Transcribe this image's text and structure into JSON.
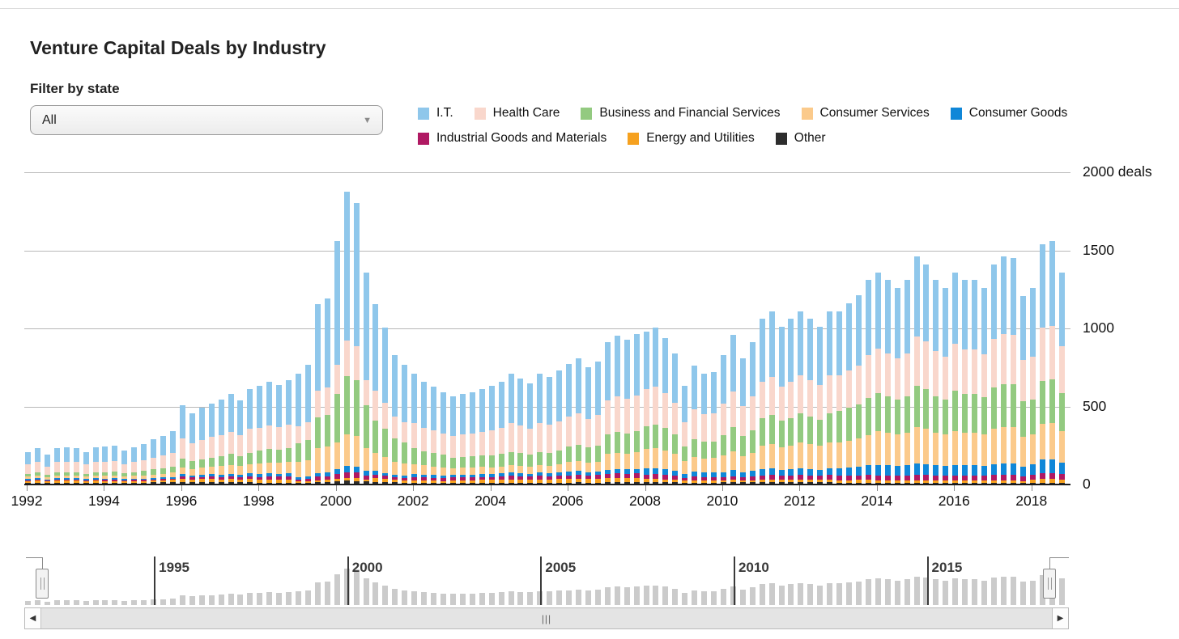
{
  "page": {
    "title": "Venture Capital Deals by Industry"
  },
  "filter": {
    "label": "Filter by state",
    "value": "All"
  },
  "legend": {
    "items": [
      {
        "label": "I.T.",
        "color": "#8fc7eb",
        "row": 0
      },
      {
        "label": "Health Care",
        "color": "#f9d7cc",
        "row": 0
      },
      {
        "label": "Business and Financial Services",
        "color": "#93ca80",
        "row": 0
      },
      {
        "label": "Consumer Services",
        "color": "#fbca8b",
        "row": 0
      },
      {
        "label": "Consumer Goods",
        "color": "#1087d8",
        "row": 0
      },
      {
        "label": "Industrial Goods and Materials",
        "color": "#b01963",
        "row": 1
      },
      {
        "label": "Energy and Utilities",
        "color": "#f6a11f",
        "row": 1
      },
      {
        "label": "Other",
        "color": "#2d2d2d",
        "row": 1
      }
    ]
  },
  "y_axis": {
    "gridlines": [
      {
        "value": 2000,
        "label": "2000 deals"
      },
      {
        "value": 1500,
        "label": "1500"
      },
      {
        "value": 1000,
        "label": "1000"
      },
      {
        "value": 500,
        "label": "500"
      },
      {
        "value": 0,
        "label": "0"
      }
    ]
  },
  "x_axis": {
    "years": [
      1992,
      1994,
      1996,
      1998,
      2000,
      2002,
      2004,
      2006,
      2008,
      2010,
      2012,
      2014,
      2016,
      2018
    ]
  },
  "brush": {
    "year_labels": [
      "1995",
      "2000",
      "2005",
      "2010",
      "2015"
    ]
  },
  "scrollbar": {
    "left_arrow": "◀",
    "right_arrow": "▶",
    "grip": "|||"
  },
  "chart_data": {
    "type": "bar",
    "stacked": true,
    "title": "Venture Capital Deals by Industry",
    "ylabel": "deals",
    "ylim": [
      0,
      2000
    ],
    "grid": true,
    "legend_position": "top",
    "x_unit": "quarter",
    "x_start": "1992 Q1",
    "x_end": "2018 Q4",
    "stack_order_bottom_to_top": [
      "Other",
      "Energy and Utilities",
      "Industrial Goods and Materials",
      "Consumer Goods",
      "Consumer Services",
      "Business and Financial Services",
      "Health Care",
      "I.T."
    ],
    "totals_by_quarter": [
      205,
      230,
      185,
      230,
      235,
      230,
      205,
      235,
      240,
      245,
      215,
      235,
      255,
      285,
      305,
      335,
      505,
      450,
      485,
      515,
      540,
      575,
      535,
      605,
      625,
      655,
      635,
      665,
      705,
      760,
      1150,
      1185,
      1555,
      1870,
      1800,
      1355,
      1150,
      1000,
      825,
      760,
      705,
      655,
      620,
      585,
      560,
      575,
      585,
      605,
      625,
      655,
      705,
      675,
      645,
      705,
      685,
      725,
      765,
      805,
      745,
      785,
      905,
      950,
      925,
      960,
      975,
      1000,
      935,
      835,
      625,
      755,
      705,
      715,
      825,
      955,
      805,
      905,
      1055,
      1105,
      1005,
      1055,
      1105,
      1055,
      1005,
      1105,
      1105,
      1155,
      1205,
      1305,
      1355,
      1305,
      1255,
      1305,
      1455,
      1405,
      1305,
      1255,
      1355,
      1305,
      1305,
      1255,
      1405,
      1455,
      1445,
      1205,
      1255,
      1535,
      1555,
      1355
    ],
    "composition_fractions_by_year": {
      "1992": {
        "I.T.": 0.4,
        "Health Care": 0.29,
        "Business and Financial Services": 0.09,
        "Consumer Services": 0.07,
        "Consumer Goods": 0.04,
        "Industrial Goods and Materials": 0.03,
        "Energy and Utilities": 0.05,
        "Other": 0.03
      },
      "1993": {
        "I.T.": 0.4,
        "Health Care": 0.29,
        "Business and Financial Services": 0.09,
        "Consumer Services": 0.07,
        "Consumer Goods": 0.04,
        "Industrial Goods and Materials": 0.03,
        "Energy and Utilities": 0.05,
        "Other": 0.03
      },
      "1994": {
        "I.T.": 0.41,
        "Health Care": 0.28,
        "Business and Financial Services": 0.1,
        "Consumer Services": 0.07,
        "Consumer Goods": 0.04,
        "Industrial Goods and Materials": 0.03,
        "Energy and Utilities": 0.04,
        "Other": 0.03
      },
      "1995": {
        "I.T.": 0.41,
        "Health Care": 0.27,
        "Business and Financial Services": 0.11,
        "Consumer Services": 0.08,
        "Consumer Goods": 0.03,
        "Industrial Goods and Materials": 0.03,
        "Energy and Utilities": 0.04,
        "Other": 0.03
      },
      "1996": {
        "I.T.": 0.42,
        "Health Care": 0.26,
        "Business and Financial Services": 0.11,
        "Consumer Services": 0.09,
        "Consumer Goods": 0.03,
        "Industrial Goods and Materials": 0.03,
        "Energy and Utilities": 0.04,
        "Other": 0.02
      },
      "1997": {
        "I.T.": 0.42,
        "Health Care": 0.25,
        "Business and Financial Services": 0.12,
        "Consumer Services": 0.1,
        "Consumer Goods": 0.03,
        "Industrial Goods and Materials": 0.03,
        "Energy and Utilities": 0.03,
        "Other": 0.02
      },
      "1998": {
        "I.T.": 0.43,
        "Health Care": 0.23,
        "Business and Financial Services": 0.13,
        "Consumer Services": 0.11,
        "Consumer Goods": 0.03,
        "Industrial Goods and Materials": 0.03,
        "Energy and Utilities": 0.03,
        "Other": 0.01
      },
      "1999": {
        "I.T.": 0.48,
        "Health Care": 0.15,
        "Business and Financial Services": 0.17,
        "Consumer Services": 0.14,
        "Consumer Goods": 0.02,
        "Industrial Goods and Materials": 0.02,
        "Energy and Utilities": 0.01,
        "Other": 0.01
      },
      "2000": {
        "I.T.": 0.51,
        "Health Care": 0.12,
        "Business and Financial Services": 0.2,
        "Consumer Services": 0.11,
        "Consumer Goods": 0.02,
        "Industrial Goods and Materials": 0.02,
        "Energy and Utilities": 0.01,
        "Other": 0.01
      },
      "2001": {
        "I.T.": 0.48,
        "Health Care": 0.17,
        "Business and Financial Services": 0.18,
        "Consumer Services": 0.1,
        "Consumer Goods": 0.02,
        "Industrial Goods and Materials": 0.02,
        "Energy and Utilities": 0.02,
        "Other": 0.01
      },
      "2002": {
        "I.T.": 0.45,
        "Health Care": 0.23,
        "Business and Financial Services": 0.14,
        "Consumer Services": 0.09,
        "Consumer Goods": 0.03,
        "Industrial Goods and Materials": 0.03,
        "Energy and Utilities": 0.02,
        "Other": 0.01
      },
      "2003": {
        "I.T.": 0.45,
        "Health Care": 0.25,
        "Business and Financial Services": 0.12,
        "Consumer Services": 0.08,
        "Consumer Goods": 0.03,
        "Industrial Goods and Materials": 0.03,
        "Energy and Utilities": 0.03,
        "Other": 0.01
      },
      "2004": {
        "I.T.": 0.45,
        "Health Care": 0.26,
        "Business and Financial Services": 0.12,
        "Consumer Services": 0.07,
        "Consumer Goods": 0.03,
        "Industrial Goods and Materials": 0.03,
        "Energy and Utilities": 0.03,
        "Other": 0.01
      },
      "2005": {
        "I.T.": 0.45,
        "Health Care": 0.26,
        "Business and Financial Services": 0.12,
        "Consumer Services": 0.07,
        "Consumer Goods": 0.03,
        "Industrial Goods and Materials": 0.03,
        "Energy and Utilities": 0.03,
        "Other": 0.01
      },
      "2006": {
        "I.T.": 0.44,
        "Health Care": 0.25,
        "Business and Financial Services": 0.13,
        "Consumer Services": 0.08,
        "Consumer Goods": 0.03,
        "Industrial Goods and Materials": 0.03,
        "Energy and Utilities": 0.03,
        "Other": 0.01
      },
      "2007": {
        "I.T.": 0.41,
        "Health Care": 0.24,
        "Business and Financial Services": 0.14,
        "Consumer Services": 0.11,
        "Consumer Goods": 0.03,
        "Industrial Goods and Materials": 0.03,
        "Energy and Utilities": 0.03,
        "Other": 0.01
      },
      "2008": {
        "I.T.": 0.38,
        "Health Care": 0.24,
        "Business and Financial Services": 0.15,
        "Consumer Services": 0.13,
        "Consumer Goods": 0.04,
        "Industrial Goods and Materials": 0.03,
        "Energy and Utilities": 0.02,
        "Other": 0.01
      },
      "2009": {
        "I.T.": 0.37,
        "Health Care": 0.25,
        "Business and Financial Services": 0.15,
        "Consumer Services": 0.13,
        "Consumer Goods": 0.04,
        "Industrial Goods and Materials": 0.03,
        "Energy and Utilities": 0.02,
        "Other": 0.01
      },
      "2010": {
        "I.T.": 0.38,
        "Health Care": 0.24,
        "Business and Financial Services": 0.16,
        "Consumer Services": 0.13,
        "Consumer Goods": 0.04,
        "Industrial Goods and Materials": 0.025,
        "Energy and Utilities": 0.015,
        "Other": 0.01
      },
      "2011": {
        "I.T.": 0.38,
        "Health Care": 0.22,
        "Business and Financial Services": 0.17,
        "Consumer Services": 0.14,
        "Consumer Goods": 0.04,
        "Industrial Goods and Materials": 0.025,
        "Energy and Utilities": 0.015,
        "Other": 0.01
      },
      "2012": {
        "I.T.": 0.37,
        "Health Care": 0.22,
        "Business and Financial Services": 0.17,
        "Consumer Services": 0.15,
        "Consumer Goods": 0.04,
        "Industrial Goods and Materials": 0.025,
        "Energy and Utilities": 0.015,
        "Other": 0.01
      },
      "2013": {
        "I.T.": 0.37,
        "Health Care": 0.21,
        "Business and Financial Services": 0.18,
        "Consumer Services": 0.15,
        "Consumer Goods": 0.045,
        "Industrial Goods and Materials": 0.025,
        "Energy and Utilities": 0.015,
        "Other": 0.005
      },
      "2014": {
        "I.T.": 0.36,
        "Health Care": 0.21,
        "Business and Financial Services": 0.18,
        "Consumer Services": 0.16,
        "Consumer Goods": 0.05,
        "Industrial Goods and Materials": 0.025,
        "Energy and Utilities": 0.01,
        "Other": 0.005
      },
      "2015": {
        "I.T.": 0.35,
        "Health Care": 0.22,
        "Business and Financial Services": 0.18,
        "Consumer Services": 0.16,
        "Consumer Goods": 0.05,
        "Industrial Goods and Materials": 0.025,
        "Energy and Utilities": 0.01,
        "Other": 0.005
      },
      "2016": {
        "I.T.": 0.34,
        "Health Care": 0.22,
        "Business and Financial Services": 0.19,
        "Consumer Services": 0.16,
        "Consumer Goods": 0.05,
        "Industrial Goods and Materials": 0.025,
        "Energy and Utilities": 0.01,
        "Other": 0.005
      },
      "2017": {
        "I.T.": 0.34,
        "Health Care": 0.22,
        "Business and Financial Services": 0.19,
        "Consumer Services": 0.16,
        "Consumer Goods": 0.05,
        "Industrial Goods and Materials": 0.025,
        "Energy and Utilities": 0.01,
        "Other": 0.005
      },
      "2018": {
        "I.T.": 0.35,
        "Health Care": 0.22,
        "Business and Financial Services": 0.18,
        "Consumer Services": 0.15,
        "Consumer Goods": 0.055,
        "Industrial Goods and Materials": 0.025,
        "Energy and Utilities": 0.015,
        "Other": 0.005
      }
    }
  }
}
